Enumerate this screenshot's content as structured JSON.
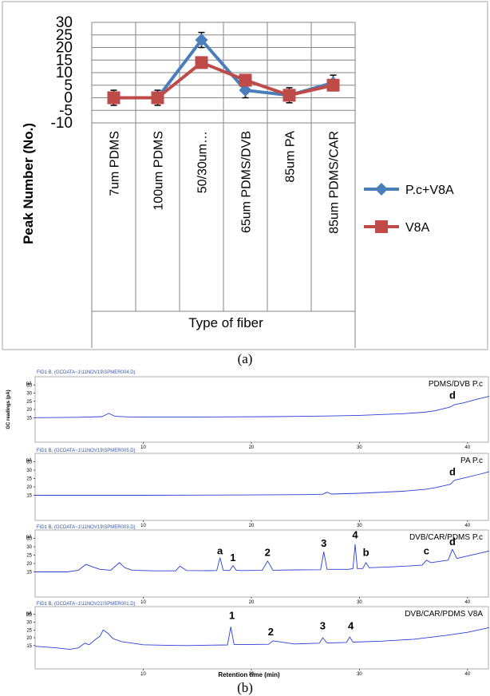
{
  "chart_data": [
    {
      "type": "line",
      "categories": [
        "7um PDMS",
        "100um PDMS",
        "50/30um…",
        "65um PDMS/DVB",
        "85um PA",
        "85um PDMS/CAR"
      ],
      "series": [
        {
          "name": "P.c+V8A",
          "values": [
            0,
            0,
            23,
            3,
            1,
            6
          ],
          "errors": [
            3,
            3,
            3,
            3,
            3,
            3
          ],
          "color": "#4a7ebb",
          "marker": "diamond"
        },
        {
          "name": "V8A",
          "values": [
            0,
            0,
            14,
            7,
            1,
            5
          ],
          "errors": [
            0,
            0,
            0,
            0,
            0,
            0
          ],
          "color": "#be4b48",
          "marker": "square"
        }
      ],
      "xlabel": "Type of fiber",
      "ylabel": "Peak Number (No.)",
      "ylim": [
        -10,
        30
      ],
      "yticks": [
        -10,
        -5,
        0,
        5,
        10,
        15,
        20,
        25,
        30
      ],
      "ytick_labels": [
        "-10",
        "-5",
        "0",
        "5",
        "10",
        "15",
        "20",
        "25",
        "30"
      ],
      "grid": true,
      "legend": "right",
      "caption": "(a)"
    },
    {
      "type": "line",
      "caption": "(b)",
      "xlabel": "Retention time (min)",
      "xlim": [
        0,
        42
      ],
      "xticks": [
        10,
        20,
        30,
        40
      ],
      "ylim": [
        0,
        40
      ],
      "yticks": [
        15,
        20,
        25,
        30,
        35,
        40
      ],
      "panels": [
        {
          "header": "FID1 B, (GCDATA~1\\11NOV19\\SPMER004.D)",
          "unit": "pA",
          "ylabel": "GC readings (pA)",
          "title": "PDMS/DVB P.c",
          "annotations": [
            {
              "label": "d",
              "x": 38.6,
              "y": 26.5
            }
          ],
          "x": [
            0,
            4,
            6.2,
            6.8,
            7.4,
            9,
            16,
            22,
            27,
            30,
            34,
            36,
            37,
            38.4,
            38.8,
            39.6,
            41,
            42
          ],
          "y": [
            15,
            15.2,
            15.6,
            17.6,
            15.8,
            15.3,
            15.4,
            15.6,
            16,
            16.4,
            17.4,
            18.3,
            19.2,
            21.5,
            23,
            24,
            26.5,
            28
          ]
        },
        {
          "header": "FID1 B, (GCDATA~1\\11NOV19\\SPMER005.D)",
          "unit": "pA",
          "ylabel": "",
          "title": "PA P.c",
          "annotations": [
            {
              "label": "d",
              "x": 38.6,
              "y": 27
            }
          ],
          "x": [
            0,
            10,
            20,
            25,
            26.6,
            27,
            27.4,
            30,
            34,
            36,
            37,
            38.4,
            38.8,
            39.6,
            41,
            42
          ],
          "y": [
            15,
            15,
            15.2,
            15.4,
            15.6,
            16.8,
            15.7,
            16.2,
            17.4,
            18.5,
            19.5,
            21.5,
            24,
            25.2,
            27.4,
            29
          ]
        },
        {
          "header": "FID1 B, (GCDATA~1\\11NOV19\\SPMER003.D)",
          "unit": "pA",
          "ylabel": "",
          "title": "DVB/CAR/PDMS P.c",
          "annotations": [
            {
              "label": "a",
              "x": 17.1,
              "y": 25.5
            },
            {
              "label": "1",
              "x": 18.3,
              "y": 21.5
            },
            {
              "label": "2",
              "x": 21.5,
              "y": 24.5
            },
            {
              "label": "3",
              "x": 26.7,
              "y": 30
            },
            {
              "label": "4",
              "x": 29.6,
              "y": 35
            },
            {
              "label": "b",
              "x": 30.6,
              "y": 24.5
            },
            {
              "label": "c",
              "x": 36.2,
              "y": 25.5
            },
            {
              "label": "d",
              "x": 38.6,
              "y": 31
            }
          ],
          "x": [
            0,
            3,
            4,
            4.7,
            5.3,
            6,
            7,
            7.8,
            8.3,
            9,
            11,
            13,
            13.4,
            14,
            16,
            16.8,
            17.1,
            17.4,
            18,
            18.3,
            18.6,
            19,
            21,
            21.5,
            22,
            24,
            26.4,
            26.7,
            27,
            29,
            29.4,
            29.6,
            29.8,
            30.3,
            30.6,
            30.9,
            33,
            35.8,
            36.2,
            36.6,
            38.2,
            38.6,
            39,
            40,
            42
          ],
          "y": [
            15,
            15,
            16,
            19.5,
            18,
            16.5,
            16,
            20.5,
            17.5,
            16,
            15.6,
            15.6,
            18.5,
            15.8,
            15.7,
            15.8,
            23.5,
            16,
            15.8,
            18.8,
            16,
            15.8,
            15.9,
            21.5,
            16,
            16.2,
            16.3,
            27,
            16.5,
            16.5,
            17,
            31.5,
            17,
            17,
            20.5,
            17.5,
            18,
            19,
            22,
            20.5,
            22,
            28.5,
            23,
            24.5,
            27.5
          ]
        },
        {
          "header": "FID1 B, (GCDATA~1\\11NOV21\\SPMER001.D)",
          "unit": "pA",
          "ylabel": "",
          "title": "DVB/CAR/PDMS V8A",
          "annotations": [
            {
              "label": "1",
              "x": 18.2,
              "y": 32
            },
            {
              "label": "2",
              "x": 21.8,
              "y": 21.5
            },
            {
              "label": "3",
              "x": 26.6,
              "y": 25.5
            },
            {
              "label": "4",
              "x": 29.2,
              "y": 25.5
            }
          ],
          "x": [
            0,
            2,
            3.2,
            4,
            4.6,
            5,
            5.6,
            6,
            6.3,
            6.7,
            7.2,
            8,
            9,
            10,
            12,
            14,
            17.8,
            18.1,
            18.4,
            20,
            21.6,
            22,
            24,
            26.3,
            26.6,
            27,
            28.8,
            29.1,
            29.4,
            32,
            35,
            38,
            40,
            42
          ],
          "y": [
            14.5,
            13.5,
            12.5,
            13.5,
            16.5,
            15.5,
            19,
            21,
            25,
            23,
            19.5,
            17.5,
            16.5,
            15.5,
            15.2,
            15,
            15.4,
            27,
            15.6,
            15.7,
            15.8,
            18,
            16,
            16.5,
            20,
            16.6,
            17,
            20.5,
            17.2,
            17.8,
            19,
            21.5,
            23.5,
            26.5
          ]
        }
      ]
    }
  ]
}
